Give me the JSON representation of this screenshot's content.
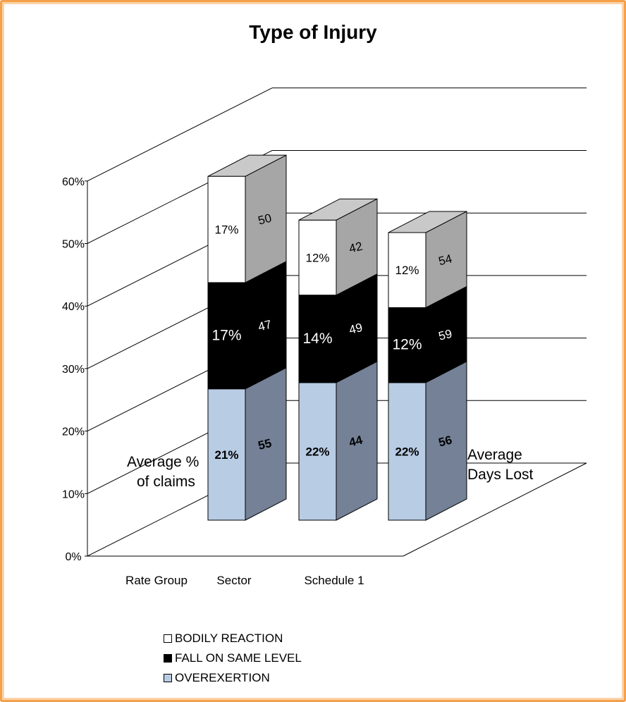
{
  "chart_data": {
    "type": "bar",
    "stacked": true,
    "three_d": true,
    "title": "Type of Injury",
    "xlabel": "",
    "ylabel": "",
    "ylim": [
      0,
      60
    ],
    "yticks": [
      "0%",
      "10%",
      "20%",
      "30%",
      "40%",
      "50%",
      "60%"
    ],
    "categories": [
      "Rate Group",
      "Sector",
      "Schedule 1"
    ],
    "side_note_left": "Average % of claims",
    "side_note_right": "Average Days Lost",
    "legend_position": "bottom",
    "series": [
      {
        "name": "OVEREXERTION",
        "color": "#b8cce4",
        "side_color": "#748196",
        "values": [
          21,
          22,
          22
        ],
        "labels": [
          "21%",
          "22%",
          "22%"
        ],
        "days_lost": [
          55,
          44,
          56
        ]
      },
      {
        "name": "FALL ON SAME LEVEL",
        "color": "#000000",
        "side_color": "#000000",
        "values": [
          17,
          14,
          12
        ],
        "labels": [
          "17%",
          "14%",
          "12%"
        ],
        "days_lost": [
          47,
          49,
          59
        ]
      },
      {
        "name": "BODILY REACTION",
        "color": "#ffffff",
        "side_color": "#a6a6a6",
        "values": [
          17,
          12,
          12
        ],
        "labels": [
          "17%",
          "12%",
          "12%"
        ],
        "days_lost": [
          50,
          42,
          54
        ]
      }
    ]
  },
  "legend": [
    {
      "label": "BODILY REACTION",
      "color": "#ffffff"
    },
    {
      "label": "FALL ON SAME LEVEL",
      "color": "#000000"
    },
    {
      "label": "OVEREXERTION",
      "color": "#b8cce4"
    }
  ]
}
